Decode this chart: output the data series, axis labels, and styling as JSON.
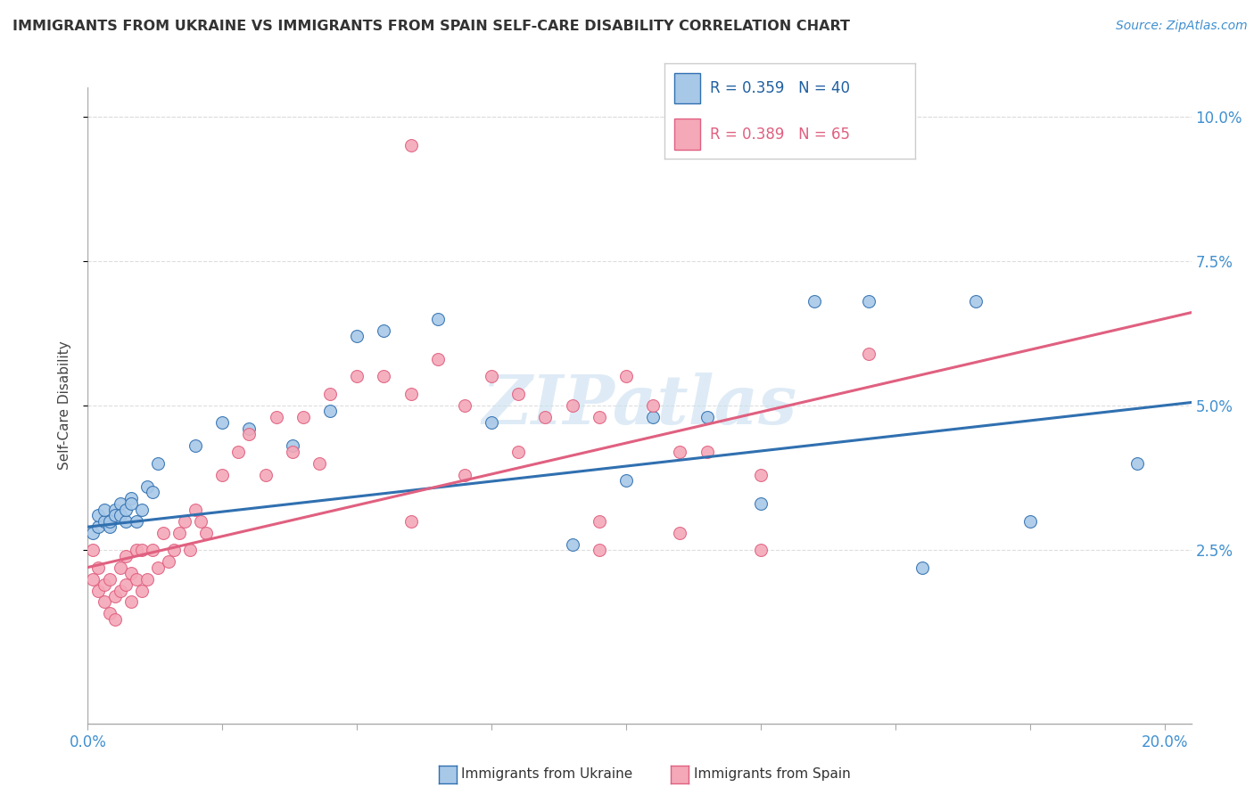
{
  "title": "IMMIGRANTS FROM UKRAINE VS IMMIGRANTS FROM SPAIN SELF-CARE DISABILITY CORRELATION CHART",
  "source": "Source: ZipAtlas.com",
  "ylabel": "Self-Care Disability",
  "legend_label_ukraine": "Immigrants from Ukraine",
  "legend_label_spain": "Immigrants from Spain",
  "color_ukraine": "#a8c8e8",
  "color_spain": "#f4a8b8",
  "color_ukraine_line": "#3070b0",
  "color_spain_line": "#e06080",
  "xlim": [
    0.0,
    0.205
  ],
  "ylim": [
    -0.005,
    0.105
  ],
  "yticks": [
    0.025,
    0.05,
    0.075,
    0.1
  ],
  "ytick_labels": [
    "2.5%",
    "5.0%",
    "7.5%",
    "10.0%"
  ],
  "xticks": [
    0.0,
    0.025,
    0.05,
    0.075,
    0.1,
    0.125,
    0.15,
    0.175,
    0.2
  ],
  "ukraine_R": "0.359",
  "ukraine_N": "40",
  "spain_R": "0.389",
  "spain_N": "65",
  "ukraine_x": [
    0.001,
    0.002,
    0.002,
    0.003,
    0.003,
    0.004,
    0.004,
    0.005,
    0.005,
    0.006,
    0.006,
    0.007,
    0.007,
    0.008,
    0.008,
    0.009,
    0.01,
    0.011,
    0.012,
    0.013,
    0.02,
    0.025,
    0.03,
    0.038,
    0.045,
    0.05,
    0.055,
    0.065,
    0.075,
    0.09,
    0.1,
    0.105,
    0.115,
    0.125,
    0.135,
    0.145,
    0.155,
    0.165,
    0.175,
    0.195
  ],
  "ukraine_y": [
    0.028,
    0.029,
    0.031,
    0.03,
    0.032,
    0.029,
    0.03,
    0.032,
    0.031,
    0.033,
    0.031,
    0.03,
    0.032,
    0.034,
    0.033,
    0.03,
    0.032,
    0.036,
    0.035,
    0.04,
    0.043,
    0.047,
    0.046,
    0.043,
    0.049,
    0.062,
    0.063,
    0.065,
    0.047,
    0.026,
    0.037,
    0.048,
    0.048,
    0.033,
    0.068,
    0.068,
    0.022,
    0.068,
    0.03,
    0.04
  ],
  "spain_x": [
    0.001,
    0.001,
    0.002,
    0.002,
    0.003,
    0.003,
    0.004,
    0.004,
    0.005,
    0.005,
    0.006,
    0.006,
    0.007,
    0.007,
    0.008,
    0.008,
    0.009,
    0.009,
    0.01,
    0.01,
    0.011,
    0.012,
    0.013,
    0.014,
    0.015,
    0.016,
    0.017,
    0.018,
    0.019,
    0.02,
    0.021,
    0.022,
    0.025,
    0.028,
    0.03,
    0.033,
    0.035,
    0.038,
    0.04,
    0.043,
    0.045,
    0.05,
    0.055,
    0.06,
    0.065,
    0.07,
    0.075,
    0.08,
    0.085,
    0.09,
    0.095,
    0.1,
    0.105,
    0.11,
    0.115,
    0.125,
    0.06,
    0.07,
    0.08,
    0.095,
    0.11,
    0.125,
    0.145,
    0.06,
    0.095
  ],
  "spain_y": [
    0.025,
    0.02,
    0.022,
    0.018,
    0.019,
    0.016,
    0.02,
    0.014,
    0.017,
    0.013,
    0.022,
    0.018,
    0.024,
    0.019,
    0.021,
    0.016,
    0.025,
    0.02,
    0.025,
    0.018,
    0.02,
    0.025,
    0.022,
    0.028,
    0.023,
    0.025,
    0.028,
    0.03,
    0.025,
    0.032,
    0.03,
    0.028,
    0.038,
    0.042,
    0.045,
    0.038,
    0.048,
    0.042,
    0.048,
    0.04,
    0.052,
    0.055,
    0.055,
    0.052,
    0.058,
    0.05,
    0.055,
    0.052,
    0.048,
    0.05,
    0.048,
    0.055,
    0.05,
    0.042,
    0.042,
    0.038,
    0.03,
    0.038,
    0.042,
    0.03,
    0.028,
    0.025,
    0.059,
    0.095,
    0.025
  ],
  "watermark": "ZIPatlas",
  "background_color": "#ffffff",
  "grid_color": "#dddddd"
}
